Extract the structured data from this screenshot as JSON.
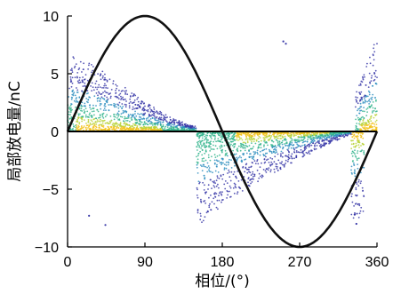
{
  "chart_data": {
    "type": "scatter",
    "title": "",
    "xlabel": "相位/(°)",
    "ylabel": "局部放电量/nC",
    "xlim": [
      0,
      360
    ],
    "ylim": [
      -10,
      10
    ],
    "x_ticks": [
      "0",
      "90",
      "180",
      "270",
      "360"
    ],
    "y_ticks": [
      "10",
      "5",
      "0",
      "−5",
      "−10"
    ],
    "grid": false,
    "legend": "none",
    "colors": {
      "reference_curve": "#111111",
      "density_low": "#3a3aa8",
      "density_mid_low": "#2f8fc0",
      "density_mid": "#36b58e",
      "density_mid_high": "#b8d23a",
      "density_high": "#f2c21a"
    },
    "series": [
      {
        "kind": "line",
        "shape": "sine",
        "amplitude": 10,
        "x": [
          0,
          30,
          60,
          90,
          120,
          150,
          180,
          210,
          240,
          270,
          300,
          330,
          360
        ],
        "y": [
          0,
          5,
          8.66,
          10,
          8.66,
          5,
          0,
          -5,
          -8.66,
          -10,
          -8.66,
          -5,
          0
        ]
      },
      {
        "kind": "scatter-density",
        "clusters": [
          {
            "polarity": "positive",
            "x_range": [
              0,
              150
            ],
            "y_peak": [
              6.8,
              6.2,
              5.3,
              4.2,
              3.1,
              2.1,
              1.2,
              0.5
            ],
            "y_peak_at_x": [
              0,
              20,
              40,
              60,
              80,
              100,
              120,
              145
            ],
            "dense_core_x": [
              10,
              110
            ],
            "dense_core_y": [
              0,
              1.2
            ]
          },
          {
            "polarity": "negative",
            "x_range": [
              150,
              330
            ],
            "y_peak": [
              -8.2,
              -7.4,
              -5.8,
              -4.6,
              -3.6,
              -2.4,
              -1.2,
              -0.3
            ],
            "y_peak_at_x": [
              150,
              165,
              190,
              215,
              240,
              270,
              300,
              328
            ],
            "dense_core_x": [
              195,
              305
            ],
            "dense_core_y": [
              -1.0,
              0
            ]
          },
          {
            "polarity": "positive",
            "x_range": [
              335,
              360
            ],
            "y_peak": [
              3.5,
              7.9
            ],
            "y_peak_at_x": [
              335,
              358
            ],
            "dense_core_x": [
              340,
              360
            ],
            "dense_core_y": [
              0,
              1.5
            ]
          },
          {
            "polarity": "negative",
            "x_range": [
              330,
              345
            ],
            "y_peak": [
              -7.5
            ],
            "y_peak_at_x": [
              336
            ]
          }
        ],
        "outliers": [
          {
            "x": 25,
            "y": -7.3
          },
          {
            "x": 44,
            "y": -8.1
          },
          {
            "x": 251,
            "y": 7.8
          },
          {
            "x": 254,
            "y": 7.6
          },
          {
            "x": 334,
            "y": -7.2
          },
          {
            "x": 336,
            "y": -8.0
          }
        ]
      }
    ]
  }
}
